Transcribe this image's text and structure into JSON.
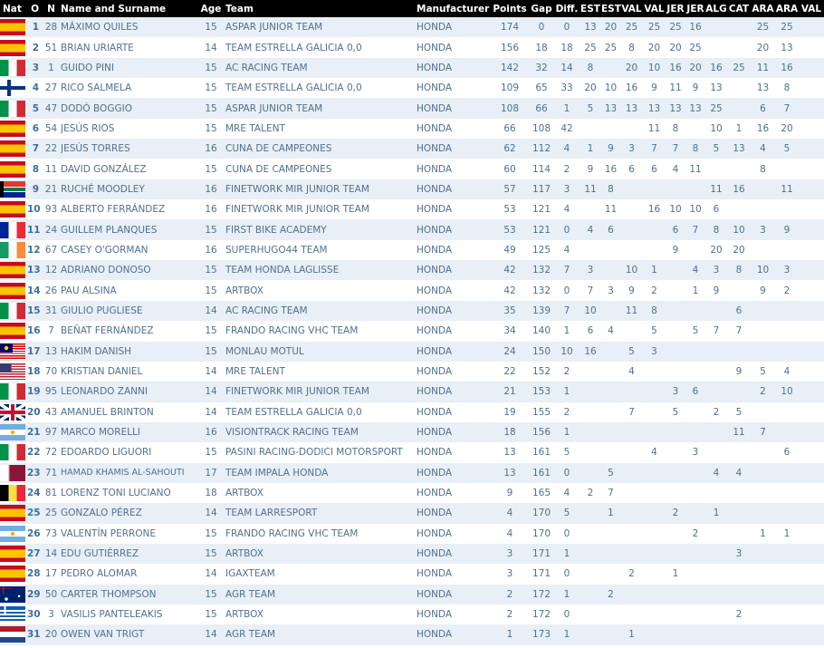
{
  "headers": {
    "nat": "Nat",
    "pos": "O",
    "num": "N",
    "name": "Name and Surname",
    "age": "Age",
    "team": "Team",
    "manufacturer": "Manufacturer",
    "points": "Points",
    "gap": "Gap",
    "diff": "Diff.",
    "races": [
      "EST",
      "EST",
      "VAL",
      "VAL",
      "JER",
      "JER",
      "ALG",
      "CAT",
      "ARA",
      "ARA",
      "VAL"
    ]
  },
  "rows": [
    {
      "flag": "es",
      "pos": "1",
      "num": "28",
      "name": "MÁXIMO QUILES",
      "age": "15",
      "team": "ASPAR JUNIOR TEAM",
      "manufacturer": "HONDA",
      "points": "174",
      "gap": "0",
      "diff": "0",
      "races": [
        "13",
        "20",
        "25",
        "25",
        "25",
        "16",
        "",
        "",
        "25",
        "25",
        ""
      ]
    },
    {
      "flag": "es",
      "pos": "2",
      "num": "51",
      "name": "BRIAN URIARTE",
      "age": "14",
      "team": "TEAM ESTRELLA GALICIA 0,0",
      "manufacturer": "HONDA",
      "points": "156",
      "gap": "18",
      "diff": "18",
      "races": [
        "25",
        "25",
        "8",
        "20",
        "20",
        "25",
        "",
        "",
        "20",
        "13",
        ""
      ]
    },
    {
      "flag": "it",
      "pos": "3",
      "num": "1",
      "name": "GUIDO PINI",
      "age": "15",
      "team": "AC RACING TEAM",
      "manufacturer": "HONDA",
      "points": "142",
      "gap": "32",
      "diff": "14",
      "races": [
        "8",
        "",
        "20",
        "10",
        "16",
        "20",
        "16",
        "25",
        "11",
        "16",
        ""
      ]
    },
    {
      "flag": "fi",
      "pos": "4",
      "num": "27",
      "name": "RICO SALMELA",
      "age": "15",
      "team": "TEAM ESTRELLA GALICIA 0,0",
      "manufacturer": "HONDA",
      "points": "109",
      "gap": "65",
      "diff": "33",
      "races": [
        "20",
        "10",
        "16",
        "9",
        "11",
        "9",
        "13",
        "",
        "13",
        "8",
        ""
      ]
    },
    {
      "flag": "it",
      "pos": "5",
      "num": "47",
      "name": "DODÓ BOGGIO",
      "age": "15",
      "team": "ASPAR JUNIOR TEAM",
      "manufacturer": "HONDA",
      "points": "108",
      "gap": "66",
      "diff": "1",
      "races": [
        "5",
        "13",
        "13",
        "13",
        "13",
        "13",
        "25",
        "",
        "6",
        "7",
        ""
      ]
    },
    {
      "flag": "es",
      "pos": "6",
      "num": "54",
      "name": "JESÚS RIOS",
      "age": "15",
      "team": "MRE TALENT",
      "manufacturer": "HONDA",
      "points": "66",
      "gap": "108",
      "diff": "42",
      "races": [
        "",
        "",
        "",
        "11",
        "8",
        "",
        "10",
        "1",
        "16",
        "20",
        ""
      ]
    },
    {
      "flag": "es",
      "pos": "7",
      "num": "22",
      "name": "JESÚS TORRES",
      "age": "16",
      "team": "CUNA DE CAMPEONES",
      "manufacturer": "HONDA",
      "points": "62",
      "gap": "112",
      "diff": "4",
      "races": [
        "1",
        "9",
        "3",
        "7",
        "7",
        "8",
        "5",
        "13",
        "4",
        "5",
        ""
      ]
    },
    {
      "flag": "es",
      "pos": "8",
      "num": "11",
      "name": "DAVID GONZÁLEZ",
      "age": "15",
      "team": "CUNA DE CAMPEONES",
      "manufacturer": "HONDA",
      "points": "60",
      "gap": "114",
      "diff": "2",
      "races": [
        "9",
        "16",
        "6",
        "6",
        "4",
        "11",
        "",
        "",
        "8",
        "",
        ""
      ]
    },
    {
      "flag": "za",
      "pos": "9",
      "num": "21",
      "name": "RUCHÉ MOODLEY",
      "age": "16",
      "team": "FINETWORK MIR JUNIOR TEAM",
      "manufacturer": "HONDA",
      "points": "57",
      "gap": "117",
      "diff": "3",
      "races": [
        "11",
        "8",
        "",
        "",
        "",
        "",
        "11",
        "16",
        "",
        "11",
        ""
      ]
    },
    {
      "flag": "es",
      "pos": "10",
      "num": "93",
      "name": "ALBERTO FERRÁNDEZ",
      "age": "16",
      "team": "FINETWORK MIR JUNIOR TEAM",
      "manufacturer": "HONDA",
      "points": "53",
      "gap": "121",
      "diff": "4",
      "races": [
        "",
        "11",
        "",
        "16",
        "10",
        "10",
        "6",
        "",
        "",
        "",
        ""
      ]
    },
    {
      "flag": "fr",
      "pos": "11",
      "num": "24",
      "name": "GUILLEM PLANQUES",
      "age": "15",
      "team": "FIRST BIKE ACADEMY",
      "manufacturer": "HONDA",
      "points": "53",
      "gap": "121",
      "diff": "0",
      "races": [
        "4",
        "6",
        "",
        "",
        "6",
        "7",
        "8",
        "10",
        "3",
        "9",
        ""
      ]
    },
    {
      "flag": "ie",
      "pos": "12",
      "num": "67",
      "name": "CASEY O'GORMAN",
      "age": "16",
      "team": "SUPERHUGO44 TEAM",
      "manufacturer": "HONDA",
      "points": "49",
      "gap": "125",
      "diff": "4",
      "races": [
        "",
        "",
        "",
        "",
        "9",
        "",
        "20",
        "20",
        "",
        "",
        ""
      ]
    },
    {
      "flag": "es",
      "pos": "13",
      "num": "12",
      "name": "ADRIANO DONOSO",
      "age": "15",
      "team": "TEAM HONDA LAGLISSE",
      "manufacturer": "HONDA",
      "points": "42",
      "gap": "132",
      "diff": "7",
      "races": [
        "3",
        "",
        "10",
        "1",
        "",
        "4",
        "3",
        "8",
        "10",
        "3",
        ""
      ]
    },
    {
      "flag": "es",
      "pos": "14",
      "num": "26",
      "name": "PAU ALSINA",
      "age": "15",
      "team": "ARTBOX",
      "manufacturer": "HONDA",
      "points": "42",
      "gap": "132",
      "diff": "0",
      "races": [
        "7",
        "3",
        "9",
        "2",
        "",
        "1",
        "9",
        "",
        "9",
        "2",
        ""
      ]
    },
    {
      "flag": "it",
      "pos": "15",
      "num": "31",
      "name": "GIULIO PUGLIESE",
      "age": "14",
      "team": "AC RACING TEAM",
      "manufacturer": "HONDA",
      "points": "35",
      "gap": "139",
      "diff": "7",
      "races": [
        "10",
        "",
        "11",
        "8",
        "",
        "",
        "",
        "6",
        "",
        "",
        ""
      ]
    },
    {
      "flag": "es",
      "pos": "16",
      "num": "7",
      "name": "BEÑAT FERNÁNDEZ",
      "age": "15",
      "team": "FRANDO RACING VHC TEAM",
      "manufacturer": "HONDA",
      "points": "34",
      "gap": "140",
      "diff": "1",
      "races": [
        "6",
        "4",
        "",
        "5",
        "",
        "5",
        "7",
        "7",
        "",
        "",
        ""
      ]
    },
    {
      "flag": "my",
      "pos": "17",
      "num": "13",
      "name": "HAKIM DANISH",
      "age": "15",
      "team": "MONLAU MOTUL",
      "manufacturer": "HONDA",
      "points": "24",
      "gap": "150",
      "diff": "10",
      "races": [
        "16",
        "",
        "5",
        "3",
        "",
        "",
        "",
        "",
        "",
        "",
        ""
      ]
    },
    {
      "flag": "us",
      "pos": "18",
      "num": "70",
      "name": "KRISTIAN DANIEL",
      "age": "14",
      "team": "MRE TALENT",
      "manufacturer": "HONDA",
      "points": "22",
      "gap": "152",
      "diff": "2",
      "races": [
        "",
        "",
        "4",
        "",
        "",
        "",
        "",
        "9",
        "5",
        "4",
        ""
      ]
    },
    {
      "flag": "it",
      "pos": "19",
      "num": "95",
      "name": "LEONARDO ZANNI",
      "age": "14",
      "team": "FINETWORK MIR JUNIOR TEAM",
      "manufacturer": "HONDA",
      "points": "21",
      "gap": "153",
      "diff": "1",
      "races": [
        "",
        "",
        "",
        "",
        "3",
        "6",
        "",
        "",
        "2",
        "10",
        ""
      ]
    },
    {
      "flag": "gb",
      "pos": "20",
      "num": "43",
      "name": "AMANUEL BRINTON",
      "age": "14",
      "team": "TEAM ESTRELLA GALICIA 0,0",
      "manufacturer": "HONDA",
      "points": "19",
      "gap": "155",
      "diff": "2",
      "races": [
        "",
        "",
        "7",
        "",
        "5",
        "",
        "2",
        "5",
        "",
        "",
        ""
      ]
    },
    {
      "flag": "ar",
      "pos": "21",
      "num": "97",
      "name": "MARCO MORELLI",
      "age": "16",
      "team": "VISIONTRACK RACING TEAM",
      "manufacturer": "HONDA",
      "points": "18",
      "gap": "156",
      "diff": "1",
      "races": [
        "",
        "",
        "",
        "",
        "",
        "",
        "",
        "11",
        "7",
        "",
        ""
      ]
    },
    {
      "flag": "it",
      "pos": "22",
      "num": "72",
      "name": "EDOARDO LIGUORI",
      "age": "15",
      "team": "PASINI RACING-DODICI MOTORSPORT",
      "manufacturer": "HONDA",
      "points": "13",
      "gap": "161",
      "diff": "5",
      "races": [
        "",
        "",
        "",
        "4",
        "",
        "3",
        "",
        "",
        "",
        "6",
        ""
      ]
    },
    {
      "flag": "qa",
      "pos": "23",
      "num": "71",
      "name": "HAMAD KHAMIS AL-SAHOUTI",
      "age": "17",
      "team": "TEAM IMPALA HONDA",
      "manufacturer": "HONDA",
      "points": "13",
      "gap": "161",
      "diff": "0",
      "races": [
        "",
        "5",
        "",
        "",
        "",
        "",
        "4",
        "4",
        "",
        "",
        ""
      ]
    },
    {
      "flag": "be",
      "pos": "24",
      "num": "81",
      "name": "LORENZ TONI LUCIANO",
      "age": "18",
      "team": "ARTBOX",
      "manufacturer": "HONDA",
      "points": "9",
      "gap": "165",
      "diff": "4",
      "races": [
        "2",
        "7",
        "",
        "",
        "",
        "",
        "",
        "",
        "",
        "",
        ""
      ]
    },
    {
      "flag": "es",
      "pos": "25",
      "num": "25",
      "name": "GONZALO PÉREZ",
      "age": "14",
      "team": "TEAM LARRESPORT",
      "manufacturer": "HONDA",
      "points": "4",
      "gap": "170",
      "diff": "5",
      "races": [
        "",
        "1",
        "",
        "",
        "2",
        "",
        "1",
        "",
        "",
        "",
        ""
      ]
    },
    {
      "flag": "ar",
      "pos": "26",
      "num": "73",
      "name": "VALENTÍN PERRONE",
      "age": "15",
      "team": "FRANDO RACING VHC TEAM",
      "manufacturer": "HONDA",
      "points": "4",
      "gap": "170",
      "diff": "0",
      "races": [
        "",
        "",
        "",
        "",
        "",
        "2",
        "",
        "",
        "1",
        "1",
        ""
      ]
    },
    {
      "flag": "es",
      "pos": "27",
      "num": "14",
      "name": "EDU GUTIÉRREZ",
      "age": "15",
      "team": "ARTBOX",
      "manufacturer": "HONDA",
      "points": "3",
      "gap": "171",
      "diff": "1",
      "races": [
        "",
        "",
        "",
        "",
        "",
        "",
        "",
        "3",
        "",
        "",
        ""
      ]
    },
    {
      "flag": "es",
      "pos": "28",
      "num": "17",
      "name": "PEDRO ALOMAR",
      "age": "14",
      "team": "IGAXTEAM",
      "manufacturer": "HONDA",
      "points": "3",
      "gap": "171",
      "diff": "0",
      "races": [
        "",
        "",
        "2",
        "",
        "1",
        "",
        "",
        "",
        "",
        "",
        ""
      ]
    },
    {
      "flag": "au",
      "pos": "29",
      "num": "50",
      "name": "CARTER THOMPSON",
      "age": "15",
      "team": "AGR TEAM",
      "manufacturer": "HONDA",
      "points": "2",
      "gap": "172",
      "diff": "1",
      "races": [
        "",
        "2",
        "",
        "",
        "",
        "",
        "",
        "",
        "",
        "",
        ""
      ]
    },
    {
      "flag": "gr",
      "pos": "30",
      "num": "3",
      "name": "VASILIS PANTELEAKIS",
      "age": "15",
      "team": "ARTBOX",
      "manufacturer": "HONDA",
      "points": "2",
      "gap": "172",
      "diff": "0",
      "races": [
        "",
        "",
        "",
        "",
        "",
        "",
        "",
        "2",
        "",
        "",
        ""
      ]
    },
    {
      "flag": "nl",
      "pos": "31",
      "num": "20",
      "name": "OWEN VAN TRIGT",
      "age": "14",
      "team": "AGR TEAM",
      "manufacturer": "HONDA",
      "points": "1",
      "gap": "173",
      "diff": "1",
      "races": [
        "",
        "",
        "1",
        "",
        "",
        "",
        "",
        "",
        "",
        "",
        ""
      ]
    }
  ]
}
